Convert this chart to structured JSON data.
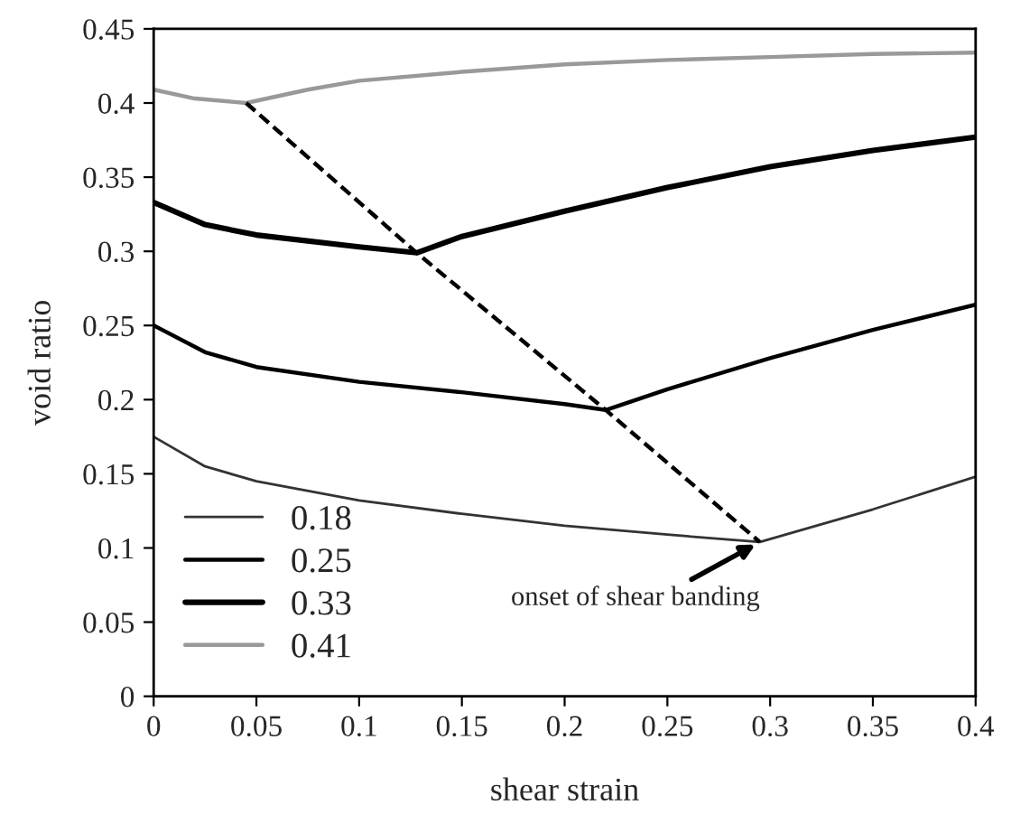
{
  "chart_data": {
    "type": "line",
    "xlabel": "shear strain",
    "ylabel": "void ratio",
    "xlim": [
      0,
      0.4
    ],
    "xticks": [
      0,
      0.05,
      0.1,
      0.15,
      0.2,
      0.25,
      0.3,
      0.35,
      {
        "value": 0.4,
        "label": "0.4"
      }
    ],
    "ylim": [
      0,
      0.45
    ],
    "yticks": [
      0,
      0.05,
      0.1,
      0.15,
      0.2,
      0.25,
      0.3,
      0.35,
      0.4,
      0.45
    ],
    "grid": false,
    "legend": "bottom left",
    "marker": "none",
    "series": [
      {
        "name": "0.18",
        "color": "#333333",
        "x": [
          0,
          0.025,
          0.05,
          0.1,
          0.15,
          0.2,
          0.25,
          0.295,
          0.35,
          0.4
        ],
        "values": [
          0.175,
          0.155,
          0.145,
          0.132,
          0.123,
          0.115,
          0.109,
          0.104,
          0.126,
          0.148
        ]
      },
      {
        "name": "0.25",
        "color": "#000000",
        "x": [
          0,
          0.025,
          0.05,
          0.1,
          0.15,
          0.2,
          0.22,
          0.25,
          0.3,
          0.35,
          0.4
        ],
        "values": [
          0.25,
          0.232,
          0.222,
          0.212,
          0.205,
          0.197,
          0.193,
          0.207,
          0.228,
          0.247,
          0.264
        ]
      },
      {
        "name": "0.33",
        "color": "#000000",
        "x": [
          0,
          0.025,
          0.05,
          0.1,
          0.128,
          0.15,
          0.2,
          0.25,
          0.3,
          0.35,
          0.4
        ],
        "values": [
          0.333,
          0.318,
          0.311,
          0.303,
          0.299,
          0.31,
          0.327,
          0.343,
          0.357,
          0.368,
          0.377
        ]
      },
      {
        "name": "0.41",
        "color": "#999999",
        "x": [
          0,
          0.02,
          0.045,
          0.075,
          0.1,
          0.15,
          0.2,
          0.25,
          0.3,
          0.35,
          0.4
        ],
        "values": [
          0.409,
          0.403,
          0.4,
          0.409,
          0.415,
          0.421,
          0.426,
          0.429,
          0.431,
          0.433,
          0.434
        ]
      },
      {
        "color": "#000000",
        "line_style": "dashed",
        "x": [
          0.045,
          0.128,
          0.22,
          0.295
        ],
        "values": [
          0.4,
          0.299,
          0.193,
          0.104
        ]
      }
    ],
    "annotations": [
      {
        "text": "onset of shear banding",
        "x": 0.295,
        "y": 0.104
      }
    ]
  }
}
